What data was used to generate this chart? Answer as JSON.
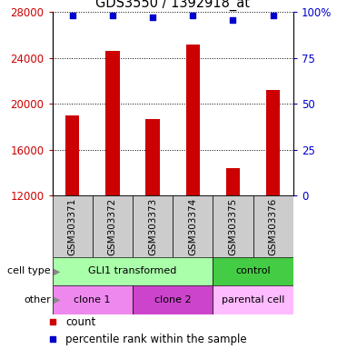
{
  "title": "GDS3550 / 1392918_at",
  "samples": [
    "GSM303371",
    "GSM303372",
    "GSM303373",
    "GSM303374",
    "GSM303375",
    "GSM303376"
  ],
  "counts": [
    19000,
    24600,
    18700,
    25200,
    14400,
    21200
  ],
  "percentile_ranks": [
    98,
    98,
    97,
    98,
    96,
    98
  ],
  "ylim_left": [
    12000,
    28000
  ],
  "ylim_right": [
    0,
    100
  ],
  "yticks_left": [
    12000,
    16000,
    20000,
    24000,
    28000
  ],
  "yticks_right": [
    0,
    25,
    50,
    75,
    100
  ],
  "bar_color": "#cc0000",
  "dot_color": "#0000cc",
  "bar_width": 0.35,
  "cell_type_groups": [
    {
      "label": "GLI1 transformed",
      "indices": [
        0,
        1,
        2,
        3
      ],
      "color": "#aaffaa"
    },
    {
      "label": "control",
      "indices": [
        4,
        5
      ],
      "color": "#44cc44"
    }
  ],
  "other_groups": [
    {
      "label": "clone 1",
      "indices": [
        0,
        1
      ],
      "color": "#ee88ee"
    },
    {
      "label": "clone 2",
      "indices": [
        2,
        3
      ],
      "color": "#cc44cc"
    },
    {
      "label": "parental cell",
      "indices": [
        4,
        5
      ],
      "color": "#ffbbff"
    }
  ],
  "legend_count_color": "#cc0000",
  "legend_dot_color": "#0000cc",
  "row_labels": [
    "cell type",
    "other"
  ],
  "tick_label_color_left": "#cc0000",
  "tick_label_color_right": "#0000cc",
  "bg_color": "#ffffff",
  "plot_bg_color": "#ffffff",
  "xticklabel_bg": "#cccccc"
}
